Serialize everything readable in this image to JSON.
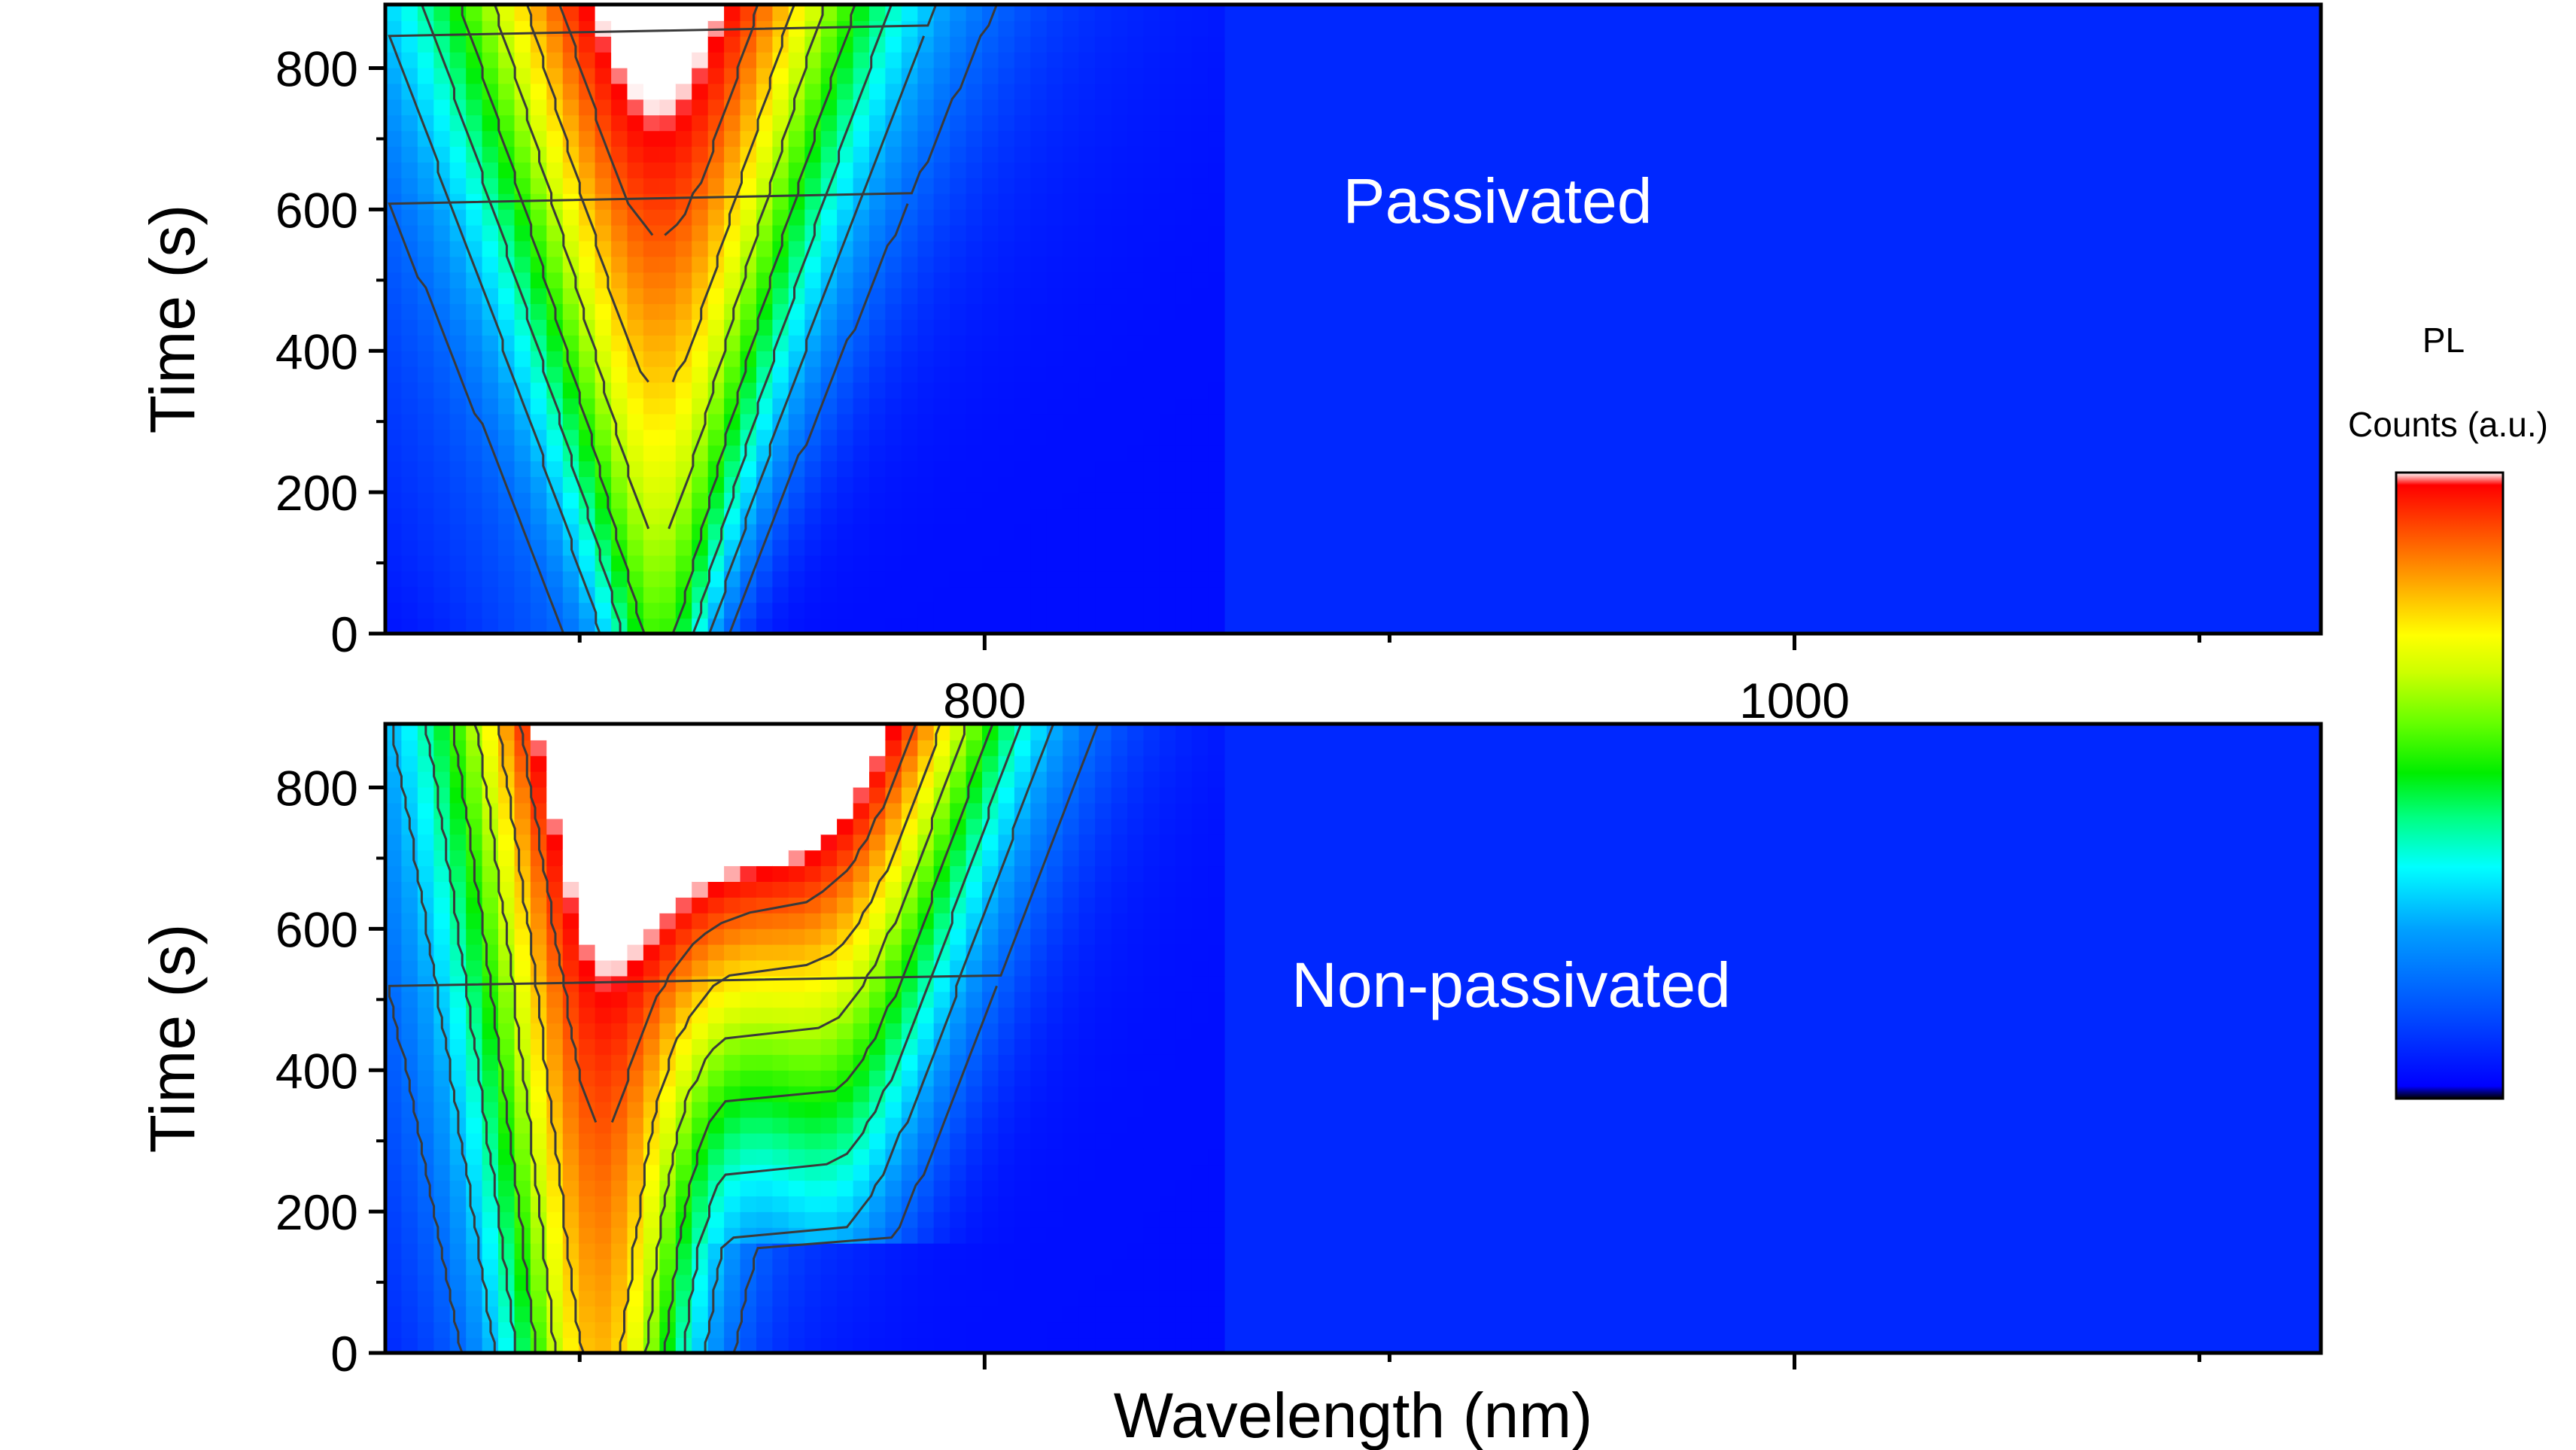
{
  "figure": {
    "colors": {
      "background": "#ffffff",
      "axis": "#000000",
      "contour_line": "#3a3a3a",
      "annotation_text": "#ffffff"
    },
    "colorbar": {
      "title_line1": "PL",
      "title_line2": "Counts (a.u.)",
      "stops": [
        "#000000",
        "#0000ff",
        "#0050ff",
        "#00a0ff",
        "#00ffff",
        "#00ff80",
        "#00ee00",
        "#66ff00",
        "#ccff00",
        "#ffff00",
        "#ffc000",
        "#ff8000",
        "#ff4000",
        "#ff0000",
        "#ffffff"
      ]
    }
  },
  "chart_data": [
    {
      "type": "heatmap",
      "annotation": "Passivated",
      "xlabel": "",
      "ylabel": "Time (s)",
      "xlim": [
        652,
        1130
      ],
      "ylim": [
        0,
        890
      ],
      "xticks": [
        800,
        1000
      ],
      "yticks": [
        0,
        200,
        400,
        600,
        800
      ],
      "contour_levels": [
        0.18,
        0.3,
        0.42,
        0.54,
        0.66,
        0.78,
        0.9
      ],
      "peaks": [
        {
          "center_nm": 720,
          "sigma_nm": [
            10,
            38
          ],
          "amplitude": [
            0.45,
            0.92
          ],
          "time_s": [
            0,
            890
          ]
        }
      ],
      "ridge_width_nm": [
        12,
        45
      ]
    },
    {
      "type": "heatmap",
      "annotation": "Non-passivated",
      "xlabel": "Wavelength (nm)",
      "ylabel": "Time (s)",
      "xlim": [
        652,
        1130
      ],
      "ylim": [
        0,
        890
      ],
      "xticks": [
        800,
        1000
      ],
      "yticks": [
        0,
        200,
        400,
        600,
        800
      ],
      "contour_levels": [
        0.18,
        0.3,
        0.42,
        0.54,
        0.66,
        0.78,
        0.9
      ],
      "peaks": [
        {
          "center_nm": 705,
          "sigma_nm": [
            16,
            28
          ],
          "amplitude": [
            0.65,
            0.9
          ],
          "time_s": [
            0,
            890
          ]
        },
        {
          "center_nm": 762,
          "sigma_nm": [
            10,
            32
          ],
          "amplitude": [
            0.05,
            0.96
          ],
          "time_s": [
            150,
            890
          ]
        }
      ],
      "ridge_width_nm": [
        18,
        40
      ]
    }
  ]
}
